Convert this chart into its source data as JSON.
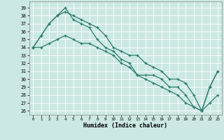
{
  "xlabel": "Humidex (Indice chaleur)",
  "xlim": [
    -0.5,
    23.5
  ],
  "ylim": [
    25.5,
    39.8
  ],
  "yticks": [
    26,
    27,
    28,
    29,
    30,
    31,
    32,
    33,
    34,
    35,
    36,
    37,
    38,
    39
  ],
  "xticks": [
    0,
    1,
    2,
    3,
    4,
    5,
    6,
    7,
    8,
    9,
    10,
    11,
    12,
    13,
    14,
    15,
    16,
    17,
    18,
    19,
    20,
    21,
    22,
    23
  ],
  "line_color": "#2d7d6e",
  "bg_color": "#cce8e4",
  "grid_color": "#b0d8d4",
  "series": [
    [
      34.0,
      35.5,
      37.0,
      38.0,
      39.0,
      37.5,
      37.0,
      36.5,
      35.0,
      34.0,
      33.5,
      32.5,
      32.0,
      30.5,
      30.5,
      30.5,
      30.0,
      29.0,
      29.0,
      28.0,
      26.5,
      26.0,
      29.0,
      31.0
    ],
    [
      34.0,
      35.5,
      37.0,
      38.0,
      38.5,
      38.0,
      37.5,
      37.0,
      36.5,
      35.5,
      34.0,
      33.5,
      33.0,
      33.0,
      32.0,
      31.5,
      31.0,
      30.0,
      30.0,
      29.5,
      28.0,
      26.0,
      29.0,
      31.0
    ],
    [
      34.0,
      34.0,
      34.5,
      35.0,
      35.5,
      35.0,
      34.5,
      34.5,
      34.0,
      33.5,
      33.0,
      32.0,
      31.5,
      30.5,
      30.0,
      29.5,
      29.0,
      28.5,
      28.0,
      27.0,
      26.5,
      26.0,
      27.0,
      28.0
    ]
  ]
}
